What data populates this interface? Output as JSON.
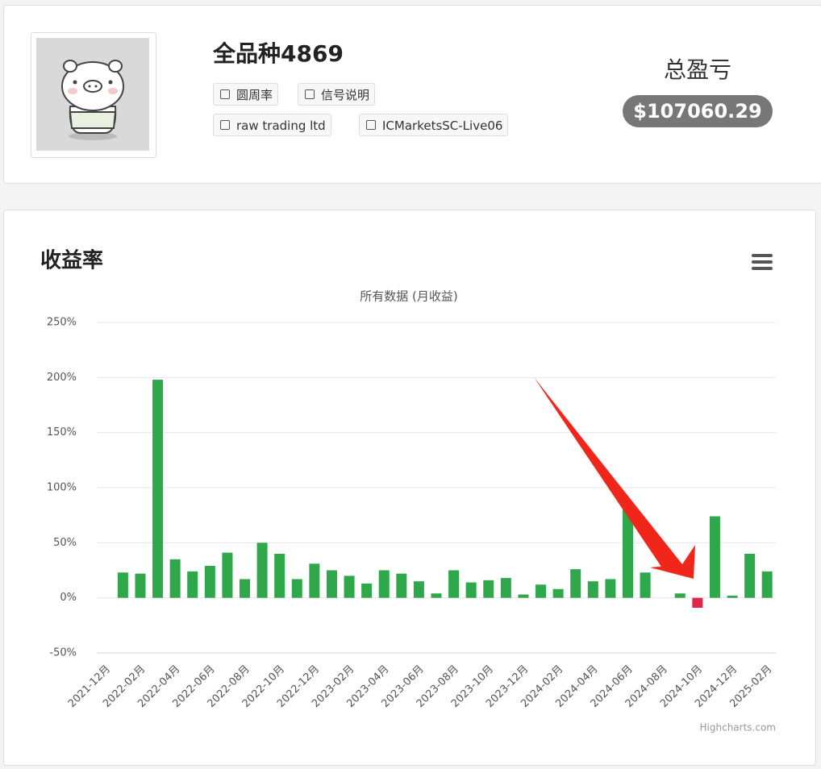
{
  "header": {
    "name": "全品种4869",
    "badges": [
      "圆周率",
      "信号说明",
      "raw trading ltd",
      "ICMarketsSC-Live06"
    ],
    "total_label": "总盈亏",
    "total_value": "$107060.29"
  },
  "chart_data": {
    "type": "bar",
    "title": "收益率",
    "subtitle": "所有数据 (月收益)",
    "credits": "Highcharts.com",
    "categories": [
      "2021-12月",
      null,
      "2022-02月",
      null,
      "2022-04月",
      null,
      "2022-06月",
      null,
      "2022-08月",
      null,
      "2022-10月",
      null,
      "2022-12月",
      null,
      "2023-02月",
      null,
      "2023-04月",
      null,
      "2023-06月",
      null,
      "2023-08月",
      null,
      "2023-10月",
      null,
      "2023-12月",
      null,
      "2024-02月",
      null,
      "2024-04月",
      null,
      "2024-06月",
      null,
      "2024-08月",
      null,
      "2024-10月",
      null,
      "2024-12月",
      null,
      "2025-02月"
    ],
    "values": [
      0,
      23,
      22,
      198,
      35,
      24,
      29,
      41,
      17,
      50,
      40,
      17,
      31,
      25,
      20,
      13,
      25,
      22,
      15,
      4,
      25,
      14,
      16,
      18,
      3,
      12,
      8,
      26,
      15,
      17,
      81,
      23,
      0,
      4,
      -9,
      74,
      2,
      40,
      24
    ],
    "color": "#2ea84a",
    "negative_color": "#e0284a",
    "ylim": [
      -50,
      250
    ],
    "yticks": [
      {
        "value": -50,
        "label": "-50%"
      },
      {
        "value": 0,
        "label": "0%"
      },
      {
        "value": 50,
        "label": "50%"
      },
      {
        "value": 100,
        "label": "100%"
      },
      {
        "value": 150,
        "label": "150%"
      },
      {
        "value": 200,
        "label": "200%"
      },
      {
        "value": 250,
        "label": "250%"
      }
    ],
    "grid": true
  }
}
